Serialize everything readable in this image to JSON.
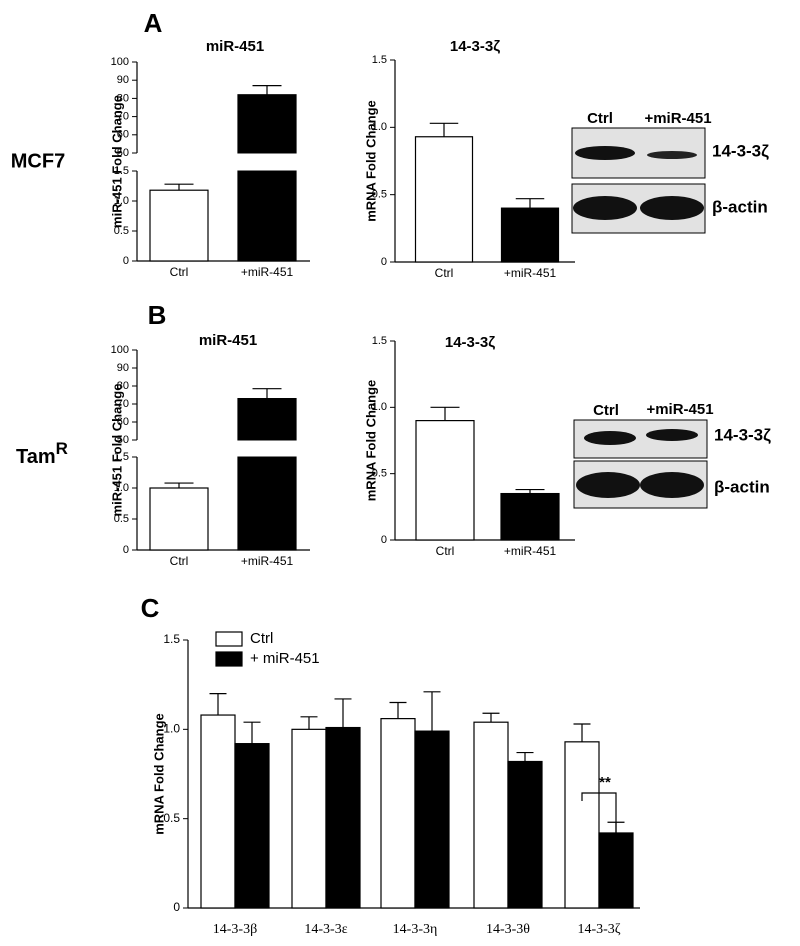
{
  "panel_labels": [
    "A",
    "B",
    "C"
  ],
  "row_labels": [
    "MCF7",
    {
      "text": "Tam",
      "sup": "R"
    }
  ],
  "blots": [
    {
      "lanes": [
        "Ctrl",
        "+miR-451"
      ],
      "rows": [
        "14-3-3ζ",
        "β-actin"
      ]
    },
    {
      "lanes": [
        "Ctrl",
        "+miR-451"
      ],
      "rows": [
        "14-3-3ζ",
        "β-actin"
      ]
    }
  ],
  "chart_data": [
    {
      "type": "bar",
      "title": "miR-451",
      "y_label": "miR-451 Fold Change",
      "categories": [
        "Ctrl",
        "+miR-451"
      ],
      "values": [
        1.18,
        82
      ],
      "errors": [
        0.1,
        5
      ],
      "colors": [
        "#ffffff",
        "#000000"
      ],
      "ylim": [
        0,
        100
      ],
      "ybreak": [
        1.5,
        50
      ],
      "yticks": [
        0,
        0.5,
        {
          "value": 1,
          "label": "1.0"
        },
        1.5,
        50,
        60,
        70,
        80,
        90,
        100
      ]
    },
    {
      "type": "bar",
      "title": "14-3-3ζ",
      "y_label": "mRNA Fold Change",
      "categories": [
        "Ctrl",
        "+miR-451"
      ],
      "values": [
        0.93,
        0.4
      ],
      "errors": [
        0.1,
        0.07
      ],
      "colors": [
        "#ffffff",
        "#000000"
      ],
      "ylim": [
        0,
        1.5
      ],
      "yticks": [
        0,
        0.5,
        {
          "value": 1,
          "label": "1.0"
        },
        1.5
      ]
    },
    {
      "type": "bar",
      "title": "miR-451",
      "y_label": "miR-451 Fold Change",
      "categories": [
        "Ctrl",
        "+miR-451"
      ],
      "values": [
        1.0,
        73
      ],
      "errors": [
        0.08,
        5.5
      ],
      "colors": [
        "#ffffff",
        "#000000"
      ],
      "ylim": [
        0,
        100
      ],
      "ybreak": [
        1.5,
        50
      ],
      "yticks": [
        0,
        0.5,
        {
          "value": 1,
          "label": "1.0"
        },
        1.5,
        50,
        60,
        70,
        80,
        90,
        100
      ]
    },
    {
      "type": "bar",
      "title": "14-3-3ζ",
      "y_label": "mRNA Fold Change",
      "categories": [
        "Ctrl",
        "+miR-451"
      ],
      "values": [
        0.9,
        0.35
      ],
      "errors": [
        0.1,
        0.03
      ],
      "colors": [
        "#ffffff",
        "#000000"
      ],
      "ylim": [
        0,
        1.5
      ],
      "yticks": [
        0,
        0.5,
        {
          "value": 1,
          "label": "1.0"
        },
        1.5
      ]
    },
    {
      "type": "bar",
      "y_label": "mRNA Fold Change",
      "categories": [
        "14-3-3β",
        "14-3-3ε",
        "14-3-3η",
        "14-3-3θ",
        "14-3-3ζ"
      ],
      "series": [
        {
          "name": "Ctrl",
          "color": "#ffffff",
          "values": [
            1.08,
            1.0,
            1.06,
            1.04,
            0.93
          ],
          "errors": [
            0.12,
            0.07,
            0.09,
            0.05,
            0.1
          ]
        },
        {
          "name": "+ miR-451",
          "color": "#000000",
          "values": [
            0.92,
            1.01,
            0.99,
            0.82,
            0.42
          ],
          "errors": [
            0.12,
            0.16,
            0.22,
            0.05,
            0.06
          ]
        }
      ],
      "annotation": "**",
      "legend": "upper left",
      "ylim": [
        0,
        1.5
      ],
      "yticks": [
        0,
        0.5,
        {
          "value": 1,
          "label": "1.0"
        },
        1.5
      ]
    }
  ]
}
